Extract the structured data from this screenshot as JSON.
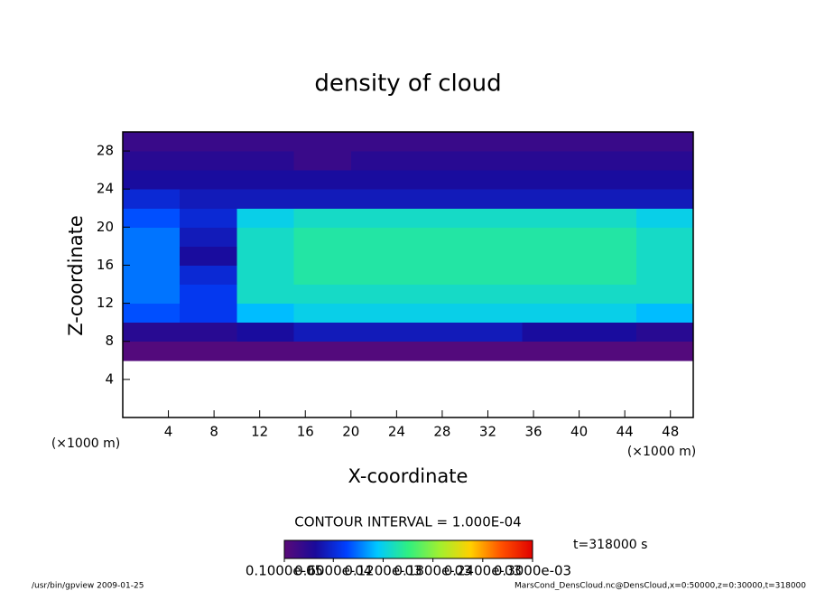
{
  "chart_data": {
    "type": "heatmap",
    "title": "density of cloud",
    "x_label": "X-coordinate",
    "y_label": "Z-coordinate",
    "x_unit": "(×1000 m)",
    "y_unit": "(×1000 m)",
    "xlim": [
      0,
      50
    ],
    "ylim": [
      0,
      30
    ],
    "xticks": [
      4,
      8,
      12,
      16,
      20,
      24,
      28,
      32,
      36,
      40,
      44,
      48
    ],
    "yticks": [
      4,
      8,
      12,
      16,
      20,
      24,
      28
    ],
    "xbins": [
      0,
      5,
      10,
      15,
      20,
      25,
      30,
      35,
      40,
      45,
      50
    ],
    "zbins": [
      0,
      2,
      4,
      6,
      8,
      10,
      12,
      14,
      16,
      18,
      20,
      22,
      24,
      26,
      28,
      30
    ],
    "values": [
      [
        null,
        null,
        null,
        null,
        null,
        null,
        null,
        null,
        null,
        null
      ],
      [
        null,
        null,
        null,
        null,
        null,
        null,
        null,
        null,
        null,
        null
      ],
      [
        null,
        null,
        null,
        null,
        null,
        null,
        null,
        null,
        null,
        null
      ],
      [
        5e-06,
        5e-06,
        5e-06,
        5e-06,
        5e-06,
        5e-06,
        5e-06,
        5e-06,
        5e-06,
        5e-06
      ],
      [
        3e-05,
        3e-05,
        4e-05,
        5e-05,
        5e-05,
        5e-05,
        5e-05,
        4e-05,
        4e-05,
        3e-05
      ],
      [
        8e-05,
        7e-05,
        0.00011,
        0.00012,
        0.00012,
        0.00012,
        0.00012,
        0.00012,
        0.00012,
        0.00011
      ],
      [
        9e-05,
        7e-05,
        0.00013,
        0.00013,
        0.00013,
        0.00013,
        0.00013,
        0.00013,
        0.00013,
        0.00013
      ],
      [
        9e-05,
        6e-05,
        0.00013,
        0.00014,
        0.00014,
        0.00014,
        0.00014,
        0.00014,
        0.00014,
        0.00013
      ],
      [
        9e-05,
        4e-05,
        0.00013,
        0.00014,
        0.00014,
        0.00014,
        0.00014,
        0.00014,
        0.00014,
        0.00013
      ],
      [
        9e-05,
        5e-05,
        0.00013,
        0.00014,
        0.00014,
        0.00014,
        0.00014,
        0.00014,
        0.00014,
        0.00013
      ],
      [
        8e-05,
        6e-05,
        0.00012,
        0.00013,
        0.00013,
        0.00013,
        0.00013,
        0.00013,
        0.00013,
        0.00012
      ],
      [
        6e-05,
        5e-05,
        5e-05,
        5e-05,
        5e-05,
        5e-05,
        5e-05,
        5e-05,
        5e-05,
        5e-05
      ],
      [
        4e-05,
        4e-05,
        4e-05,
        4e-05,
        4e-05,
        4e-05,
        4e-05,
        4e-05,
        4e-05,
        4e-05
      ],
      [
        3e-05,
        3e-05,
        3e-05,
        2e-05,
        3e-05,
        3e-05,
        3e-05,
        3e-05,
        3e-05,
        3e-05
      ],
      [
        2e-05,
        2e-05,
        2e-05,
        2e-05,
        2e-05,
        2e-05,
        2e-05,
        2e-05,
        2e-05,
        2e-05
      ]
    ],
    "colors": [
      "#5a0a78",
      "#1a0a9a",
      "#0040ff",
      "#00c8ff",
      "#30f080",
      "#a0f030",
      "#ffd000",
      "#ff5000",
      "#e00000"
    ],
    "clim": [
      1e-06,
      0.0003
    ],
    "colorbar_ticks": [
      {
        "value": 1e-06,
        "label": "0.1000e-05"
      },
      {
        "value": 6e-05,
        "label": "0.6000e-04"
      },
      {
        "value": 0.00012,
        "label": "0.1200e-03"
      },
      {
        "value": 0.00018,
        "label": "0.1800e-03"
      },
      {
        "value": 0.00024,
        "label": "0.2400e-03"
      },
      {
        "value": 0.0003,
        "label": "0.3000e-03"
      }
    ],
    "contour_interval": "CONTOUR INTERVAL = 1.000E-04",
    "time": "t=318000 s",
    "footer_left": "/usr/bin/gpview  2009-01-25",
    "footer_right": "MarsCond_DensCloud.nc@DensCloud,x=0:50000,z=0:30000,t=318000"
  }
}
